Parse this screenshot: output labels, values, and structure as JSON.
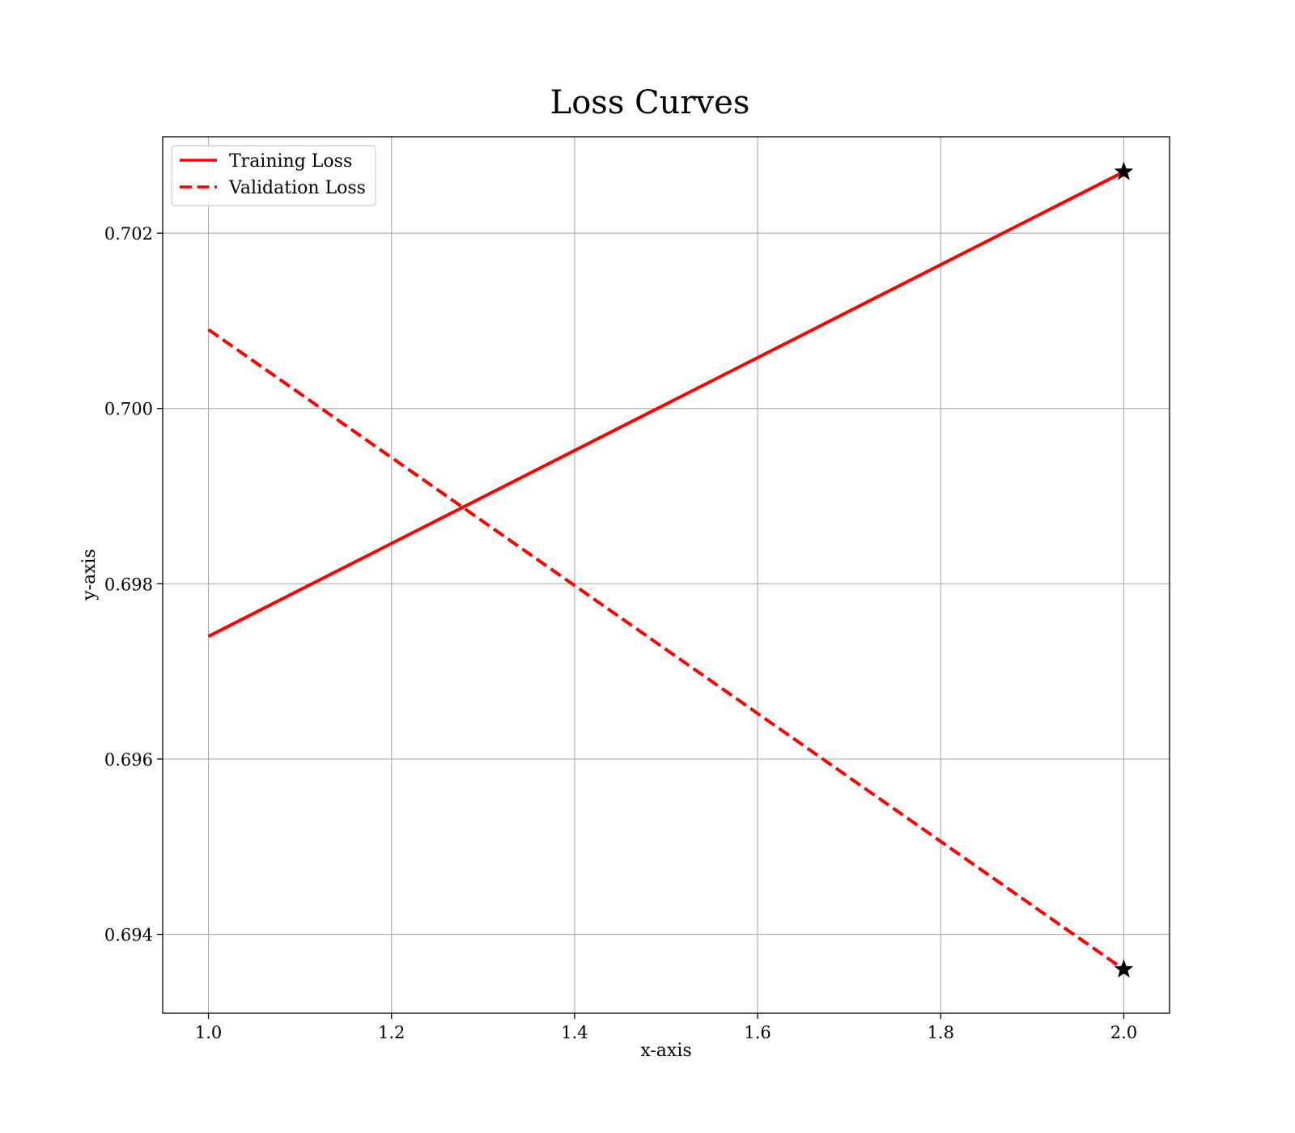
{
  "chart_data": {
    "type": "line",
    "title": "Loss Curves",
    "xlabel": "x-axis",
    "ylabel": "y-axis",
    "x": [
      1.0,
      2.0
    ],
    "series": [
      {
        "name": "Training Loss",
        "values": [
          0.6974,
          0.7027
        ],
        "color": "#ff0000",
        "linestyle": "solid",
        "end_marker": "star"
      },
      {
        "name": "Validation Loss",
        "values": [
          0.7009,
          0.6936
        ],
        "color": "#ff0000",
        "linestyle": "dashed",
        "end_marker": "star"
      }
    ],
    "xlim": [
      0.95,
      2.05
    ],
    "ylim": [
      0.6931,
      0.7031
    ],
    "xticks": [
      1.0,
      1.2,
      1.4,
      1.6,
      1.8,
      2.0
    ],
    "xtick_labels": [
      "1.0",
      "1.2",
      "1.4",
      "1.6",
      "1.8",
      "2.0"
    ],
    "yticks": [
      0.694,
      0.696,
      0.698,
      0.7,
      0.702
    ],
    "ytick_labels": [
      "0.694",
      "0.696",
      "0.698",
      "0.700",
      "0.702"
    ],
    "grid": true,
    "legend_position": "top-left",
    "marker_color": "#000000"
  }
}
